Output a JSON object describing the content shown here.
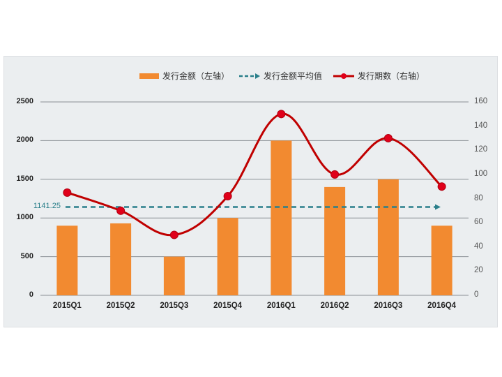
{
  "chart_data": {
    "type": "bar+line",
    "title": "",
    "categories": [
      "2015Q1",
      "2015Q2",
      "2015Q3",
      "2015Q4",
      "2016Q1",
      "2016Q2",
      "2016Q3",
      "2016Q4"
    ],
    "series": [
      {
        "name": "发行金额（左轴）",
        "type": "bar",
        "axis": "left",
        "color": "#f28a30",
        "values": [
          900,
          930,
          500,
          1000,
          2000,
          1400,
          1500,
          900
        ]
      },
      {
        "name": "发行金额平均值",
        "type": "line-dashed",
        "axis": "left",
        "color": "#2a7f8a",
        "values": [
          1141.25,
          1141.25,
          1141.25,
          1141.25,
          1141.25,
          1141.25,
          1141.25,
          1141.25
        ]
      },
      {
        "name": "发行期数（右轴）",
        "type": "line-smooth",
        "axis": "right",
        "color": "#c00000",
        "marker_color": "#e0001a",
        "values": [
          85,
          70,
          50,
          82,
          150,
          100,
          130,
          90
        ]
      }
    ],
    "left_axis": {
      "ticks": [
        "0",
        "500",
        "1000",
        "1500",
        "2000",
        "2500"
      ],
      "range": [
        0,
        2500
      ]
    },
    "right_axis": {
      "ticks": [
        "0",
        "20",
        "40",
        "60",
        "80",
        "100",
        "120",
        "140",
        "160"
      ],
      "range": [
        0,
        160
      ]
    },
    "annotations": [
      {
        "text": "1141.25",
        "target": "average-line"
      }
    ],
    "grid": true,
    "legend_position": "top"
  },
  "legend": {
    "bar_label": "发行金额（左轴）",
    "avg_label": "发行金额平均值",
    "line_label": "发行期数（右轴）"
  },
  "avg_annotation": "1141.25"
}
